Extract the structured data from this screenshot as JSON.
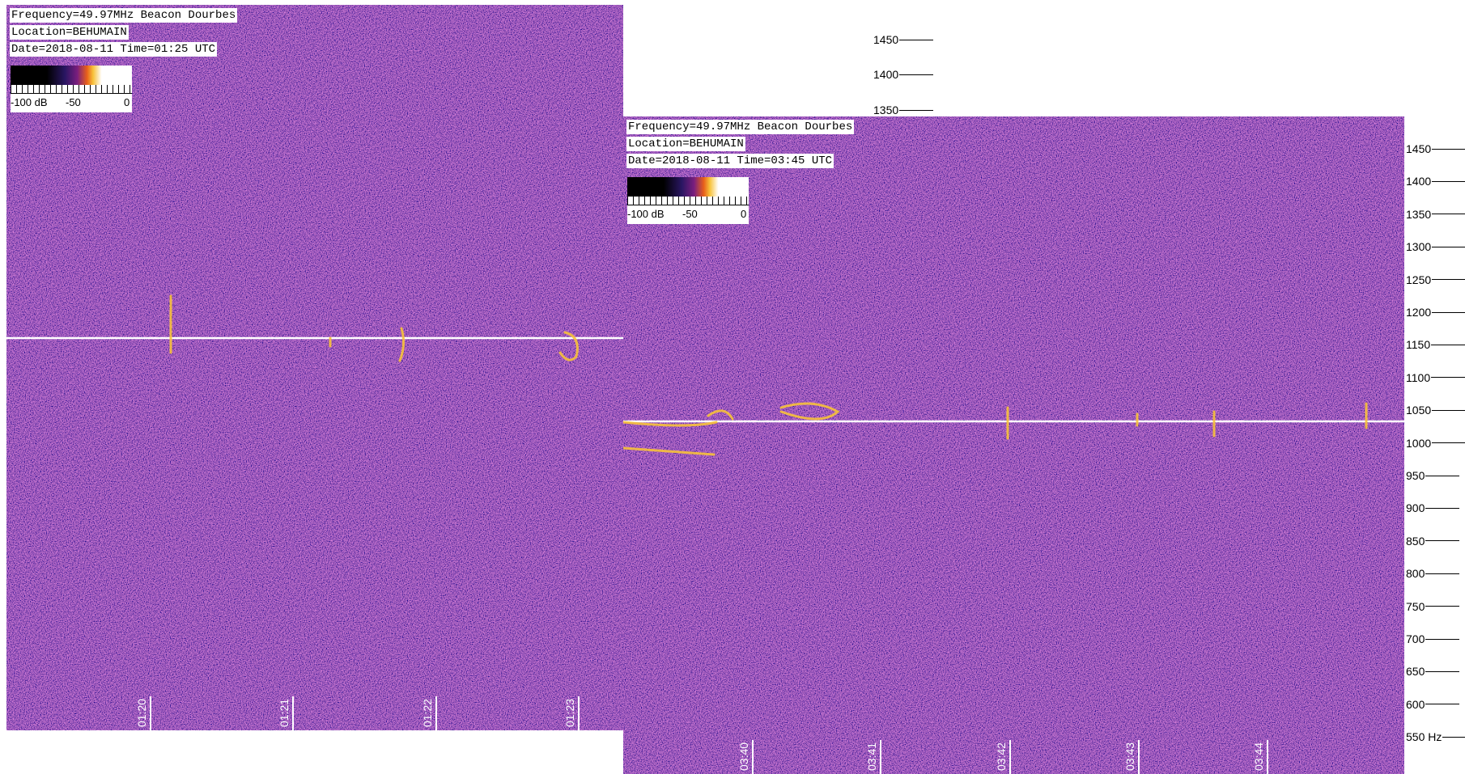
{
  "windows": [
    {
      "info": [
        "Frequency=49.97MHz Beacon Dourbes",
        "Location=BEHUMAIN",
        "Date=2018-08-11 Time=01:25 UTC"
      ],
      "colorbar": [
        "-100 dB",
        "-50",
        "0"
      ],
      "time_labels": [
        "01:20",
        "01:21",
        "01:22",
        "01:23"
      ],
      "freq_labels": [
        "1450",
        "1400",
        "1350"
      ]
    },
    {
      "info": [
        "Frequency=49.97MHz Beacon Dourbes",
        "Location=BEHUMAIN",
        "Date=2018-08-11 Time=03:45 UTC"
      ],
      "colorbar": [
        "-100 dB",
        "-50",
        "0"
      ],
      "time_labels": [
        "03:40",
        "03:41",
        "03:42",
        "03:43",
        "03:44"
      ],
      "freq_labels": [
        "1450",
        "1400",
        "1350",
        "1300",
        "1250",
        "1200",
        "1150",
        "1100",
        "1050",
        "1000",
        "950",
        "900",
        "850",
        "800",
        "750",
        "700",
        "650",
        "600",
        "550 Hz"
      ]
    }
  ]
}
